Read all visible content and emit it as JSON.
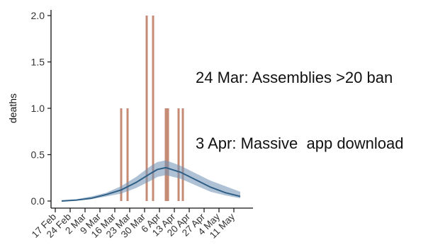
{
  "chart_data": {
    "type": "bar",
    "title": "",
    "xlabel": "",
    "ylabel": "deaths",
    "ylim": [
      0,
      2.0
    ],
    "yticks": [
      "0.0",
      "0.5",
      "1.0",
      "1.5",
      "2.0"
    ],
    "xticks": [
      "17 Feb",
      "24 Feb",
      "2 Mar",
      "9 Mar",
      "16 Mar",
      "23 Mar",
      "30 Mar",
      "6 Apr",
      "13 Apr",
      "20 Apr",
      "27 Apr",
      "4 May",
      "11 May"
    ],
    "grid": false,
    "legend": "none",
    "annotations": [
      "24 Mar: Assemblies >20 ban",
      "3 Apr: Massive  app download"
    ],
    "series": [
      {
        "type": "bar",
        "values": [
          {
            "date": "2020-03-19",
            "deaths": 1.0
          },
          {
            "date": "2020-03-22",
            "deaths": 1.0
          },
          {
            "date": "2020-03-31",
            "deaths": 2.0
          },
          {
            "date": "2020-04-03",
            "deaths": 2.0
          },
          {
            "date": "2020-04-09",
            "deaths": 1.0
          },
          {
            "date": "2020-04-10",
            "deaths": 1.0
          },
          {
            "date": "2020-04-15",
            "deaths": 1.0
          },
          {
            "date": "2020-04-17",
            "deaths": 1.0
          }
        ],
        "color": "#c58b75"
      },
      {
        "type": "area",
        "values": [
          {
            "date": "2020-02-20",
            "lower": 0.0,
            "upper": 0.01
          },
          {
            "date": "2020-02-27",
            "lower": 0.01,
            "upper": 0.02
          },
          {
            "date": "2020-03-05",
            "lower": 0.02,
            "upper": 0.05
          },
          {
            "date": "2020-03-12",
            "lower": 0.05,
            "upper": 0.09
          },
          {
            "date": "2020-03-19",
            "lower": 0.08,
            "upper": 0.16
          },
          {
            "date": "2020-03-26",
            "lower": 0.14,
            "upper": 0.26
          },
          {
            "date": "2020-04-02",
            "lower": 0.22,
            "upper": 0.38
          },
          {
            "date": "2020-04-05",
            "lower": 0.26,
            "upper": 0.42
          },
          {
            "date": "2020-04-09",
            "lower": 0.28,
            "upper": 0.44
          },
          {
            "date": "2020-04-16",
            "lower": 0.24,
            "upper": 0.38
          },
          {
            "date": "2020-04-23",
            "lower": 0.17,
            "upper": 0.3
          },
          {
            "date": "2020-04-30",
            "lower": 0.1,
            "upper": 0.22
          },
          {
            "date": "2020-05-07",
            "lower": 0.06,
            "upper": 0.16
          },
          {
            "date": "2020-05-14",
            "lower": 0.03,
            "upper": 0.1
          }
        ],
        "color": "#6d90b3"
      },
      {
        "type": "line",
        "values": [
          {
            "date": "2020-02-20",
            "deaths": 0.0
          },
          {
            "date": "2020-02-27",
            "deaths": 0.01
          },
          {
            "date": "2020-03-05",
            "deaths": 0.03
          },
          {
            "date": "2020-03-12",
            "deaths": 0.07
          },
          {
            "date": "2020-03-19",
            "deaths": 0.12
          },
          {
            "date": "2020-03-26",
            "deaths": 0.2
          },
          {
            "date": "2020-04-02",
            "deaths": 0.3
          },
          {
            "date": "2020-04-05",
            "deaths": 0.34
          },
          {
            "date": "2020-04-09",
            "deaths": 0.36
          },
          {
            "date": "2020-04-16",
            "deaths": 0.31
          },
          {
            "date": "2020-04-23",
            "deaths": 0.23
          },
          {
            "date": "2020-04-30",
            "deaths": 0.15
          },
          {
            "date": "2020-05-07",
            "deaths": 0.09
          },
          {
            "date": "2020-05-14",
            "deaths": 0.05
          }
        ],
        "color": "#2f5f86"
      }
    ]
  }
}
